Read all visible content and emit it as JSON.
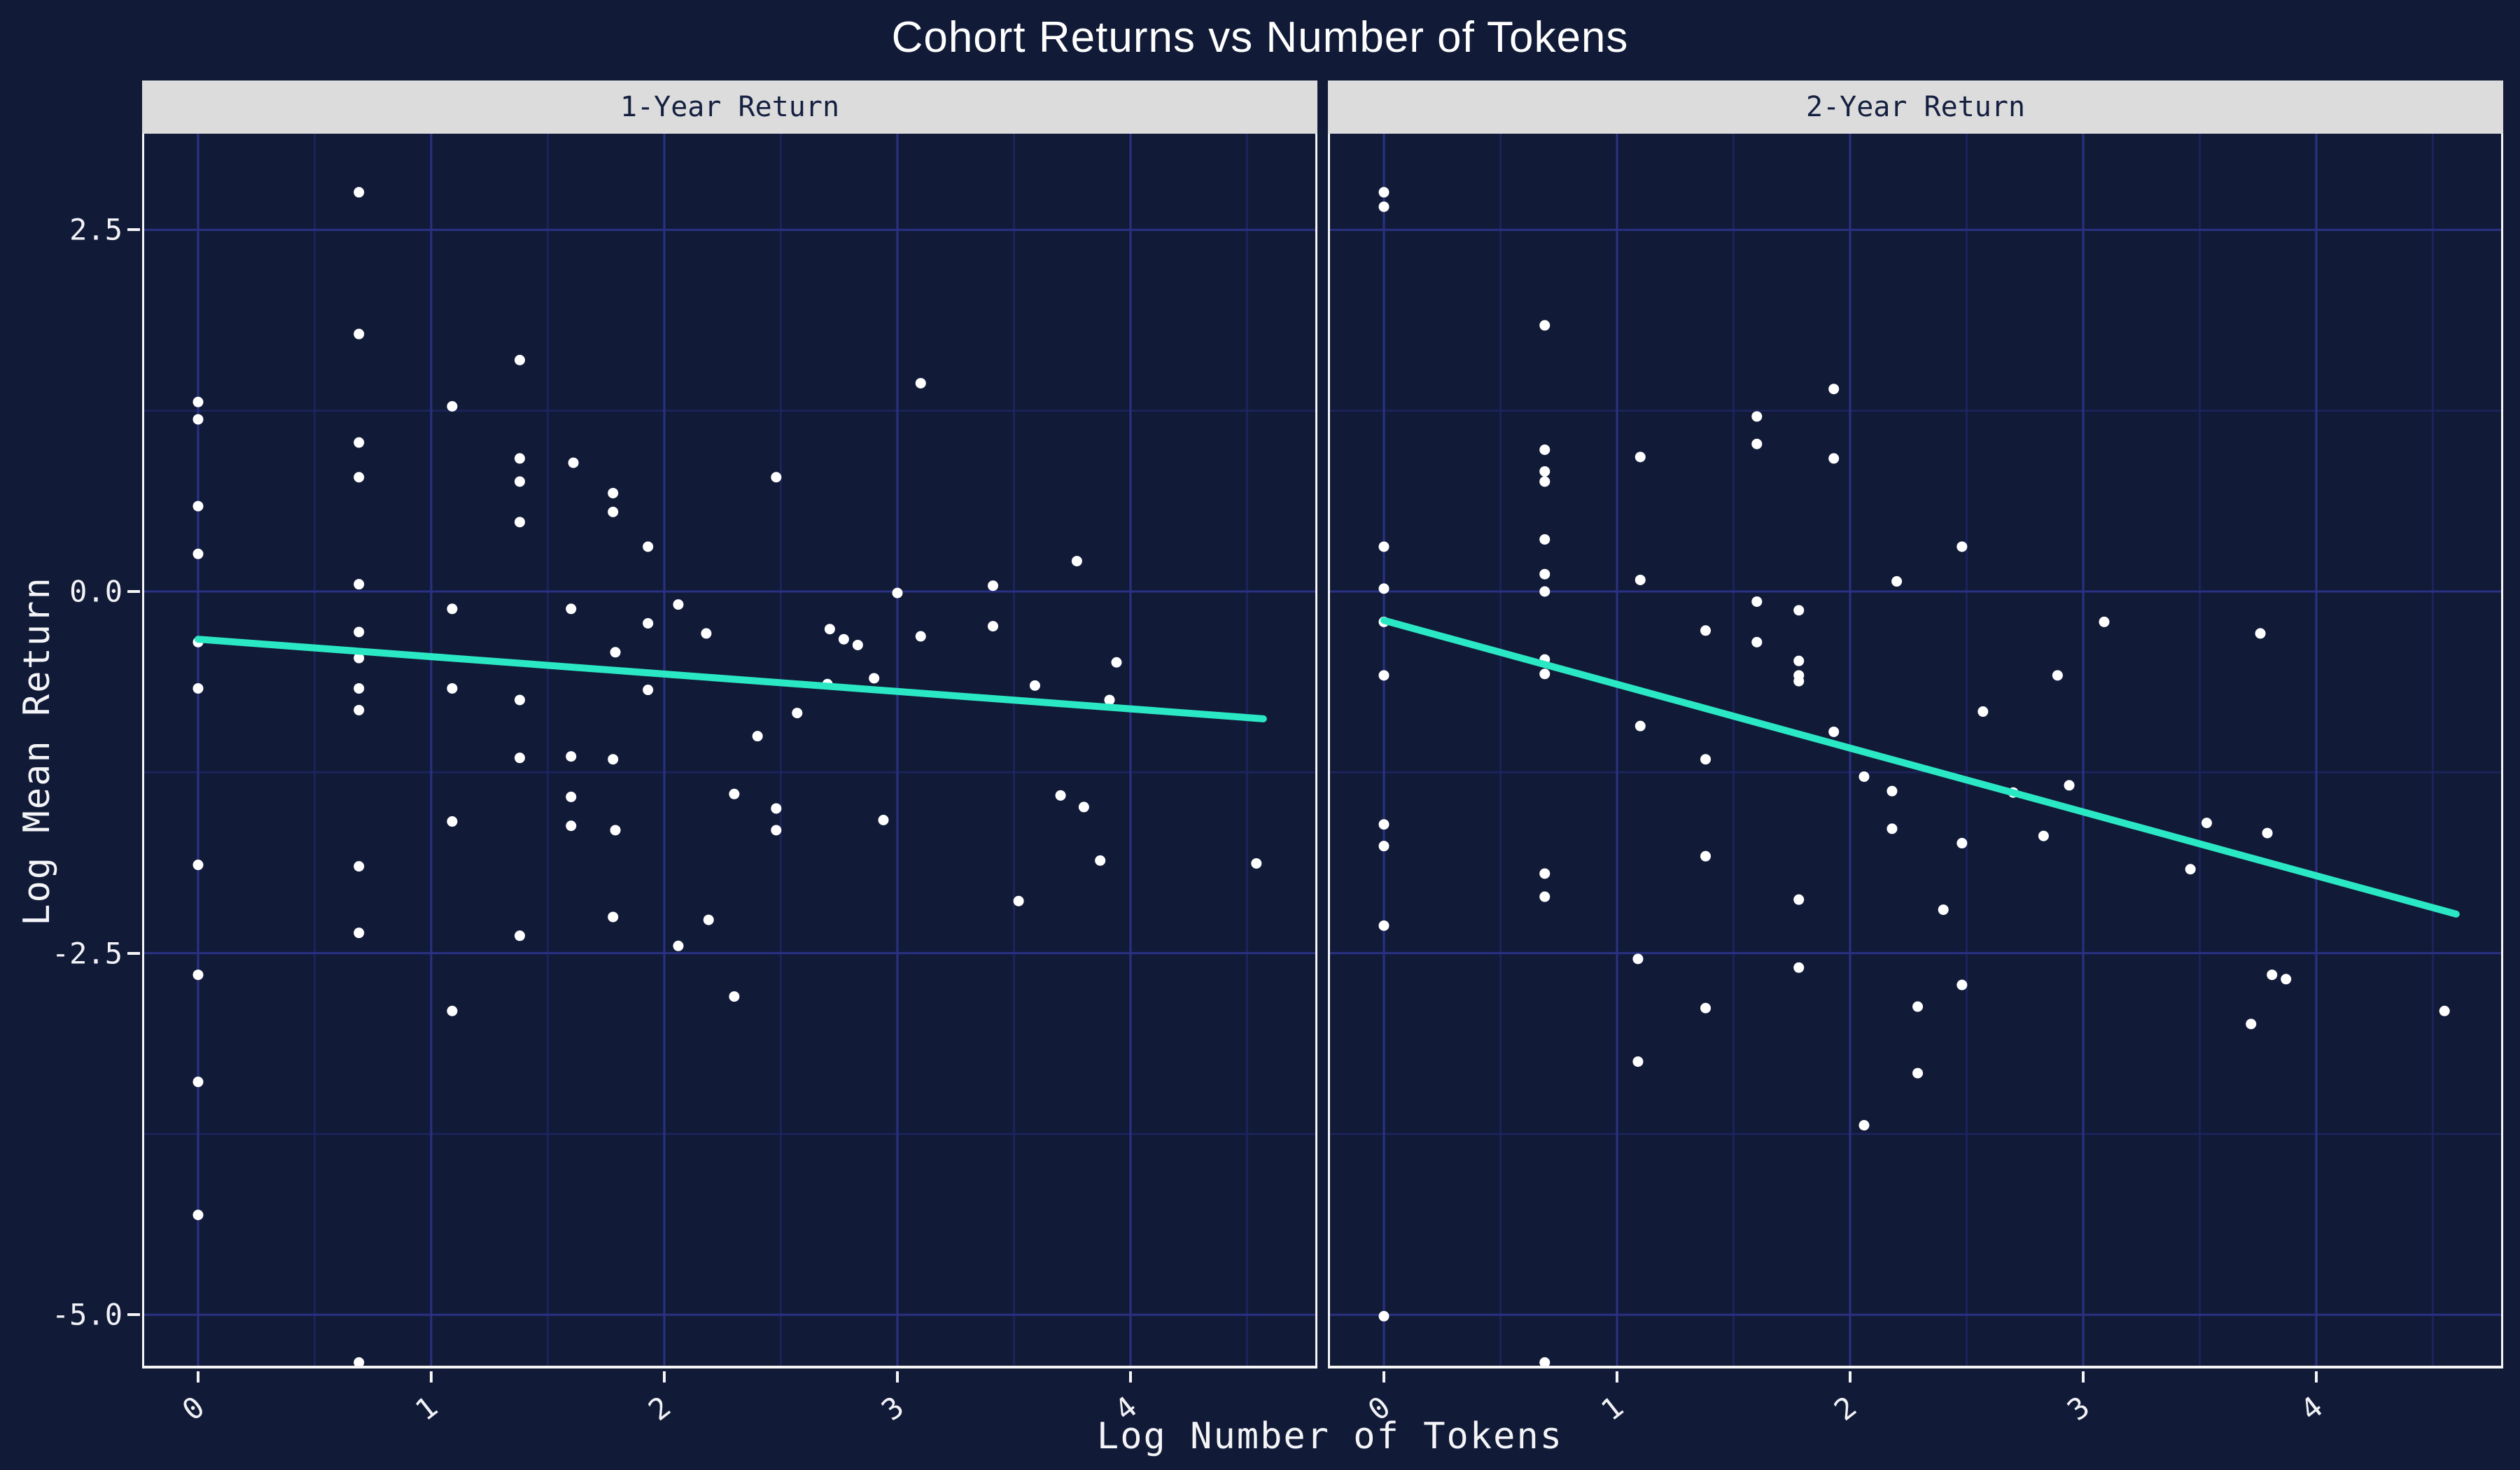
{
  "colors": {
    "background": "#111b38",
    "grid_major": "#2a3183",
    "grid_minor": "#1d2460",
    "axis_line": "#f5f5f5",
    "point": "#ffffff",
    "trend": "#2be8c4",
    "strip_bg": "#dcdcdc",
    "strip_text": "#152040",
    "text": "#f5f5f8"
  },
  "chart_data": {
    "type": "scatter",
    "title": "Cohort Returns vs Number of Tokens",
    "xlabel": "Log Number of Tokens",
    "ylabel": "Log Mean Return",
    "legend": "none",
    "grid": true,
    "xlim": [
      -0.23,
      4.81
    ],
    "ylim": [
      -5.37,
      3.16
    ],
    "x_ticks": [
      0,
      1,
      2,
      3,
      4
    ],
    "x_tick_labels": [
      "0",
      "1",
      "2",
      "3",
      "4"
    ],
    "x_minor": [
      0.5,
      1.5,
      2.5,
      3.5,
      4.5
    ],
    "y_ticks": [
      2.5,
      0.0,
      -2.5,
      -5.0
    ],
    "y_tick_labels": [
      "2.5",
      "0.0",
      "-2.5",
      "-5.0"
    ],
    "y_minor": [
      1.25,
      -1.25,
      -3.75
    ],
    "facets": [
      {
        "label": "1-Year Return",
        "trend": {
          "x1": 0.0,
          "y1": -0.33,
          "x2": 4.57,
          "y2": -0.88
        },
        "points": [
          [
            0.69,
            2.76
          ],
          [
            0.69,
            1.78
          ],
          [
            1.38,
            1.6
          ],
          [
            0.0,
            1.31
          ],
          [
            0.0,
            1.19
          ],
          [
            1.09,
            1.28
          ],
          [
            0.69,
            1.03
          ],
          [
            1.38,
            0.92
          ],
          [
            1.61,
            0.89
          ],
          [
            0.69,
            0.79
          ],
          [
            1.38,
            0.76
          ],
          [
            1.78,
            0.68
          ],
          [
            1.78,
            0.55
          ],
          [
            0.0,
            0.59
          ],
          [
            1.38,
            0.48
          ],
          [
            1.93,
            0.31
          ],
          [
            0.0,
            0.26
          ],
          [
            0.69,
            0.05
          ],
          [
            1.09,
            -0.12
          ],
          [
            1.6,
            -0.12
          ],
          [
            2.06,
            -0.09
          ],
          [
            1.93,
            -0.22
          ],
          [
            2.18,
            -0.29
          ],
          [
            0.69,
            -0.28
          ],
          [
            0.0,
            -0.35
          ],
          [
            0.69,
            -0.46
          ],
          [
            1.79,
            -0.42
          ],
          [
            0.0,
            -0.67
          ],
          [
            0.69,
            -0.67
          ],
          [
            1.09,
            -0.67
          ],
          [
            1.38,
            -0.75
          ],
          [
            1.93,
            -0.68
          ],
          [
            0.69,
            -0.82
          ],
          [
            3.1,
            1.44
          ],
          [
            2.48,
            0.79
          ],
          [
            3.77,
            0.21
          ],
          [
            3.41,
            0.04
          ],
          [
            3.0,
            -0.01
          ],
          [
            2.71,
            -0.26
          ],
          [
            3.41,
            -0.24
          ],
          [
            2.77,
            -0.33
          ],
          [
            2.83,
            -0.37
          ],
          [
            3.1,
            -0.31
          ],
          [
            3.94,
            -0.49
          ],
          [
            2.7,
            -0.64
          ],
          [
            2.9,
            -0.6
          ],
          [
            3.59,
            -0.65
          ],
          [
            3.91,
            -0.75
          ],
          [
            2.57,
            -0.84
          ],
          [
            2.4,
            -1.0
          ],
          [
            1.38,
            -1.15
          ],
          [
            1.6,
            -1.14
          ],
          [
            1.78,
            -1.16
          ],
          [
            1.6,
            -1.42
          ],
          [
            1.09,
            -1.59
          ],
          [
            1.6,
            -1.62
          ],
          [
            1.79,
            -1.65
          ],
          [
            0.0,
            -1.89
          ],
          [
            0.69,
            -1.9
          ],
          [
            0.69,
            -2.36
          ],
          [
            1.78,
            -2.25
          ],
          [
            2.19,
            -2.27
          ],
          [
            2.06,
            -2.45
          ],
          [
            1.38,
            -2.38
          ],
          [
            0.0,
            -2.65
          ],
          [
            1.09,
            -2.9
          ],
          [
            0.0,
            -3.39
          ],
          [
            0.0,
            -4.31
          ],
          [
            0.69,
            -5.33
          ],
          [
            2.3,
            -1.4
          ],
          [
            2.48,
            -1.5
          ],
          [
            2.48,
            -1.65
          ],
          [
            2.94,
            -1.58
          ],
          [
            3.7,
            -1.41
          ],
          [
            3.8,
            -1.49
          ],
          [
            3.87,
            -1.86
          ],
          [
            4.54,
            -1.88
          ],
          [
            3.52,
            -2.14
          ],
          [
            2.3,
            -2.8
          ]
        ]
      },
      {
        "label": "2-Year Return",
        "trend": {
          "x1": 0.0,
          "y1": -0.2,
          "x2": 4.6,
          "y2": -2.23
        },
        "points": [
          [
            0.0,
            2.76
          ],
          [
            0.0,
            2.66
          ],
          [
            0.69,
            1.84
          ],
          [
            1.93,
            1.4
          ],
          [
            1.6,
            1.21
          ],
          [
            1.6,
            1.02
          ],
          [
            0.69,
            0.98
          ],
          [
            1.1,
            0.93
          ],
          [
            1.93,
            0.92
          ],
          [
            0.69,
            0.83
          ],
          [
            0.69,
            0.76
          ],
          [
            0.69,
            0.36
          ],
          [
            0.0,
            0.31
          ],
          [
            0.69,
            0.12
          ],
          [
            1.1,
            0.08
          ],
          [
            2.2,
            0.07
          ],
          [
            0.0,
            0.02
          ],
          [
            0.69,
            0.0
          ],
          [
            1.6,
            -0.07
          ],
          [
            1.78,
            -0.13
          ],
          [
            0.0,
            -0.21
          ],
          [
            1.38,
            -0.27
          ],
          [
            1.6,
            -0.35
          ],
          [
            1.78,
            -0.48
          ],
          [
            1.78,
            -0.58
          ],
          [
            1.78,
            -0.62
          ],
          [
            0.69,
            -0.47
          ],
          [
            0.69,
            -0.57
          ],
          [
            0.0,
            -0.58
          ],
          [
            1.1,
            -0.93
          ],
          [
            1.93,
            -0.97
          ],
          [
            2.48,
            0.31
          ],
          [
            3.09,
            -0.21
          ],
          [
            3.76,
            -0.29
          ],
          [
            2.89,
            -0.58
          ],
          [
            2.57,
            -0.83
          ],
          [
            1.38,
            -1.16
          ],
          [
            2.06,
            -1.28
          ],
          [
            2.18,
            -1.38
          ],
          [
            2.18,
            -1.64
          ],
          [
            0.0,
            -1.61
          ],
          [
            0.0,
            -1.76
          ],
          [
            1.38,
            -1.83
          ],
          [
            0.69,
            -1.95
          ],
          [
            0.69,
            -2.11
          ],
          [
            1.78,
            -2.13
          ],
          [
            0.0,
            -2.31
          ],
          [
            1.09,
            -2.54
          ],
          [
            1.78,
            -2.6
          ],
          [
            1.38,
            -2.88
          ],
          [
            1.09,
            -3.25
          ],
          [
            2.06,
            -3.69
          ],
          [
            0.0,
            -5.01
          ],
          [
            0.69,
            -5.33
          ],
          [
            2.94,
            -1.34
          ],
          [
            2.7,
            -1.39
          ],
          [
            3.53,
            -1.6
          ],
          [
            3.79,
            -1.67
          ],
          [
            2.83,
            -1.69
          ],
          [
            2.48,
            -1.74
          ],
          [
            3.46,
            -1.92
          ],
          [
            2.4,
            -2.2
          ],
          [
            3.81,
            -2.65
          ],
          [
            3.87,
            -2.68
          ],
          [
            2.48,
            -2.72
          ],
          [
            2.29,
            -2.87
          ],
          [
            3.72,
            -2.99
          ],
          [
            4.55,
            -2.9
          ],
          [
            2.29,
            -3.33
          ]
        ]
      }
    ]
  }
}
